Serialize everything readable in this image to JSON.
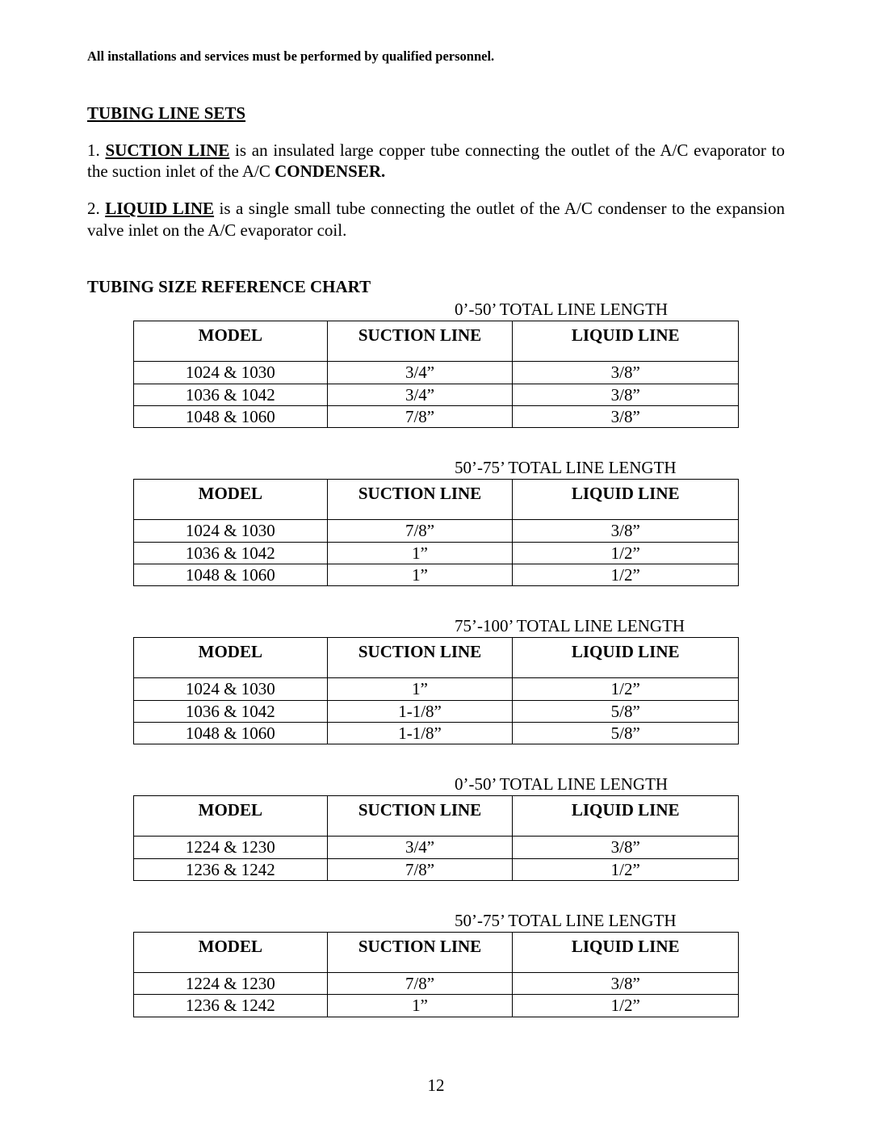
{
  "header": "All installations and services must be performed by qualified personnel.",
  "section_title": "TUBING LINE SETS",
  "para1_prefix": "1. ",
  "para1_term": "SUCTION LINE",
  "para1_mid": " is an insulated large copper tube connecting the outlet of the A/C evaporator to the suction inlet of the A/C ",
  "para1_bold": "CONDENSER.",
  "para2_prefix": "2. ",
  "para2_term": "LIQUID LINE",
  "para2_tail": " is a single small tube connecting the outlet of the A/C condenser to the expansion valve inlet on the A/C evaporator coil.",
  "chart_title": "TUBING SIZE REFERENCE CHART",
  "col_headers": {
    "model": "MODEL",
    "suction": "SUCTION LINE",
    "liquid": "LIQUID LINE"
  },
  "tables": [
    {
      "caption": "0’-50’ TOTAL LINE LENGTH",
      "rows": [
        {
          "model": "1024 & 1030",
          "suction": "3/4”",
          "liquid": "3/8”"
        },
        {
          "model": "1036 & 1042",
          "suction": "3/4”",
          "liquid": "3/8”"
        },
        {
          "model": "1048 & 1060",
          "suction": "7/8”",
          "liquid": "3/8”"
        }
      ]
    },
    {
      "caption": "50’-75’ TOTAL LINE LENGTH",
      "rows": [
        {
          "model": "1024 & 1030",
          "suction": "7/8”",
          "liquid": "3/8”"
        },
        {
          "model": "1036 & 1042",
          "suction": "1”",
          "liquid": "1/2”"
        },
        {
          "model": "1048 & 1060",
          "suction": "1”",
          "liquid": "1/2”"
        }
      ]
    },
    {
      "caption": "75’-100’ TOTAL LINE LENGTH",
      "rows": [
        {
          "model": "1024 & 1030",
          "suction": "1”",
          "liquid": "1/2”"
        },
        {
          "model": "1036 & 1042",
          "suction": "1-1/8”",
          "liquid": "5/8”"
        },
        {
          "model": "1048 & 1060",
          "suction": "1-1/8”",
          "liquid": "5/8”"
        }
      ]
    },
    {
      "caption": "0’-50’ TOTAL LINE LENGTH",
      "rows": [
        {
          "model": "1224 & 1230",
          "suction": "3/4”",
          "liquid": "3/8”"
        },
        {
          "model": "1236 & 1242",
          "suction": "7/8”",
          "liquid": "1/2”"
        }
      ]
    },
    {
      "caption": "50’-75’ TOTAL LINE LENGTH",
      "rows": [
        {
          "model": "1224 & 1230",
          "suction": "7/8”",
          "liquid": "3/8”"
        },
        {
          "model": "1236 & 1242",
          "suction": "1”",
          "liquid": "1/2”"
        }
      ]
    }
  ],
  "page_number": "12"
}
